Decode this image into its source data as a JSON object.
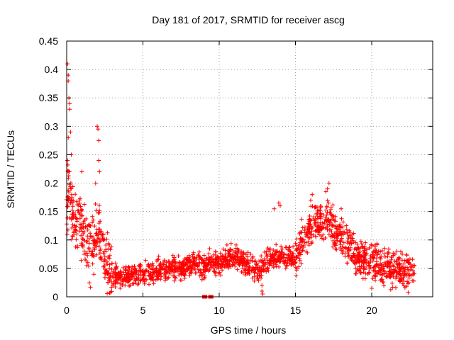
{
  "chart_data": {
    "type": "scatter",
    "title": "Day 181 of 2017, SRMTID for receiver ascg",
    "xlabel": "GPS time / hours",
    "ylabel": "SRMTID / TECUs",
    "xlim": [
      0,
      24
    ],
    "ylim": [
      0,
      0.45
    ],
    "xticks": [
      0,
      5,
      10,
      15,
      20
    ],
    "yticks": [
      0,
      0.05,
      0.1,
      0.15,
      0.2,
      0.25,
      0.3,
      0.35,
      0.4,
      0.45
    ],
    "xtick_labels": [
      "0",
      "5",
      "10",
      "15",
      "20"
    ],
    "ytick_labels": [
      "0",
      "0.05",
      "0.1",
      "0.15",
      "0.2",
      "0.25",
      "0.3",
      "0.35",
      "0.4",
      "0.45"
    ],
    "grid": true,
    "marker": "+",
    "color": "#ff0000",
    "series": [
      {
        "name": "SRMTID",
        "envelope": {
          "x": [
            0,
            0.1,
            0.2,
            0.3,
            0.5,
            0.8,
            1.0,
            1.2,
            1.5,
            1.8,
            2.0,
            2.2,
            2.4,
            2.6,
            2.8,
            3.0,
            3.5,
            4.0,
            5.0,
            6.0,
            7.0,
            8.0,
            9.0,
            10.0,
            10.5,
            11.0,
            11.5,
            12.0,
            12.4,
            12.7,
            13.0,
            13.5,
            14.0,
            14.5,
            15.0,
            15.3,
            15.6,
            16.0,
            16.3,
            16.6,
            17.0,
            17.3,
            17.6,
            18.0,
            18.5,
            19.0,
            19.5,
            20.0,
            20.5,
            21.0,
            21.5,
            22.0,
            22.5,
            22.8
          ],
          "y": [
            0.14,
            0.17,
            0.2,
            0.16,
            0.13,
            0.14,
            0.13,
            0.1,
            0.09,
            0.1,
            0.12,
            0.11,
            0.08,
            0.06,
            0.05,
            0.035,
            0.035,
            0.035,
            0.04,
            0.045,
            0.05,
            0.055,
            0.055,
            0.06,
            0.065,
            0.07,
            0.06,
            0.055,
            0.05,
            0.045,
            0.06,
            0.065,
            0.075,
            0.07,
            0.07,
            0.09,
            0.11,
            0.12,
            0.13,
            0.13,
            0.14,
            0.13,
            0.11,
            0.11,
            0.09,
            0.07,
            0.065,
            0.06,
            0.055,
            0.05,
            0.05,
            0.045,
            0.045,
            0.05
          ]
        },
        "spread": [
          {
            "x_from": 0,
            "x_to": 3,
            "value": 0.05
          },
          {
            "x_from": 3,
            "x_to": 15,
            "value": 0.018
          },
          {
            "x_from": 15,
            "x_to": 23,
            "value": 0.03
          }
        ],
        "point_count": 2000,
        "outliers": [
          {
            "x": 0.05,
            "y": 0.41
          },
          {
            "x": 0.1,
            "y": 0.39
          },
          {
            "x": 0.1,
            "y": 0.38
          },
          {
            "x": 0.15,
            "y": 0.35
          },
          {
            "x": 0.2,
            "y": 0.34
          },
          {
            "x": 0.2,
            "y": 0.33
          },
          {
            "x": 0.25,
            "y": 0.29
          },
          {
            "x": 0.1,
            "y": 0.28
          },
          {
            "x": 0.05,
            "y": 0.24
          },
          {
            "x": 0.3,
            "y": 0.25
          },
          {
            "x": 0.15,
            "y": 0.22
          },
          {
            "x": 2.0,
            "y": 0.3
          },
          {
            "x": 2.05,
            "y": 0.295
          },
          {
            "x": 2.1,
            "y": 0.275
          },
          {
            "x": 2.1,
            "y": 0.24
          },
          {
            "x": 2.15,
            "y": 0.22
          },
          {
            "x": 1.9,
            "y": 0.2
          },
          {
            "x": 1.0,
            "y": 0.22
          },
          {
            "x": 13.9,
            "y": 0.165
          },
          {
            "x": 14.0,
            "y": 0.16
          },
          {
            "x": 13.6,
            "y": 0.155
          },
          {
            "x": 16.0,
            "y": 0.17
          },
          {
            "x": 16.1,
            "y": 0.18
          },
          {
            "x": 17.1,
            "y": 0.19
          },
          {
            "x": 17.2,
            "y": 0.2
          },
          {
            "x": 17.0,
            "y": 0.185
          },
          {
            "x": 18.0,
            "y": 0.155
          },
          {
            "x": 12.8,
            "y": 0.02
          },
          {
            "x": 12.8,
            "y": 0.01
          },
          {
            "x": 12.85,
            "y": 0.005
          },
          {
            "x": 3.5,
            "y": 0.015
          },
          {
            "x": 20.0,
            "y": 0.015
          }
        ],
        "zero_markers": [
          {
            "x": 9.0,
            "y": 0
          },
          {
            "x": 9.1,
            "y": 0
          },
          {
            "x": 9.4,
            "y": 0
          },
          {
            "x": 9.5,
            "y": 0
          }
        ]
      }
    ]
  }
}
